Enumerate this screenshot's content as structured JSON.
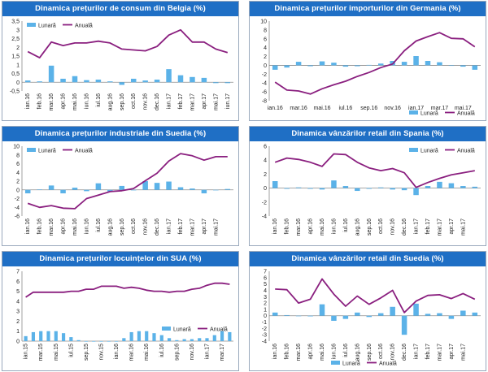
{
  "legend_labels": {
    "monthly": "Lunară",
    "annual": "Anuală"
  },
  "colors": {
    "title_bg": "#1f6fc5",
    "bar": "#5bb2e8",
    "line": "#8a1f7f"
  },
  "chart_data": [
    {
      "type": "bar+line",
      "title": "Dinamica prețurilor de consum din Belgia (%)",
      "legend_position": "top-left",
      "ylim": [
        -0.5,
        3.5
      ],
      "yticks": [
        -0.5,
        0,
        0.5,
        1,
        1.5,
        2,
        2.5,
        3,
        3.5
      ],
      "ytick_labels": [
        "-0,5",
        "0",
        "0,5",
        "1",
        "1,5",
        "2",
        "2,5",
        "3",
        "3,5"
      ],
      "categories": [
        "ian.16",
        "feb.16",
        "mar.16",
        "apr.16",
        "mai.16",
        "iun.16",
        "iul.16",
        "aug.16",
        "sep.16",
        "oct.16",
        "nov.16",
        "dec.16",
        "ian.17",
        "feb.17",
        "mar.17",
        "apr.17",
        "mai.17",
        "iun.17"
      ],
      "xtick_labels": [
        "ian.16",
        "feb.16",
        "mar.16",
        "apr.16",
        "mai.16",
        "iun.16",
        "iul.16",
        "aug.16",
        "sep.16",
        "oct.16",
        "nov.16",
        "dec.16",
        "ian.17",
        "feb.17",
        "mar.17",
        "apr.17",
        "mai.17",
        "iun.17"
      ],
      "xtick_rotated": true,
      "series": [
        {
          "name": "Lunară",
          "kind": "bar",
          "values": [
            0.1,
            0.05,
            0.95,
            0.2,
            0.35,
            0.12,
            0.15,
            0.05,
            -0.15,
            0.2,
            0.1,
            0.15,
            0.75,
            0.4,
            0.3,
            0.25,
            -0.05,
            -0.05
          ]
        },
        {
          "name": "Anuală",
          "kind": "line",
          "values": [
            1.75,
            1.4,
            2.3,
            2.1,
            2.25,
            2.25,
            2.35,
            2.25,
            1.9,
            1.85,
            1.8,
            2.05,
            2.7,
            3.0,
            2.3,
            2.3,
            1.9,
            1.7
          ]
        }
      ]
    },
    {
      "type": "bar+line",
      "title": "Dinamica prețurilor importurilor din Germania (%)",
      "legend_position": "bottom-right",
      "ylim": [
        -8,
        10
      ],
      "yticks": [
        -8,
        -6,
        -4,
        -2,
        0,
        2,
        4,
        6,
        8,
        10
      ],
      "ytick_labels": [
        "-8",
        "-6",
        "-4",
        "-2",
        "0",
        "2",
        "4",
        "6",
        "8",
        "10"
      ],
      "categories": [
        "ian.16",
        "feb.16",
        "mar.16",
        "apr.16",
        "mai.16",
        "iun.16",
        "iul.16",
        "aug.16",
        "sep.16",
        "oct.16",
        "nov.16",
        "dec.16",
        "ian.17",
        "feb.17",
        "mar.17",
        "apr.17",
        "mai.17",
        "iun.17"
      ],
      "xtick_labels": [
        "ian.16",
        "",
        "mar.16",
        "",
        "mai.16",
        "",
        "iul.16",
        "",
        "sep.16",
        "",
        "nov.16",
        "",
        "ian.17",
        "",
        "mar.17",
        "",
        "mai.17",
        ""
      ],
      "xtick_rotated": false,
      "series": [
        {
          "name": "Lunară",
          "kind": "bar",
          "values": [
            -1.0,
            -0.5,
            0.8,
            -0.2,
            0.9,
            0.6,
            -0.3,
            -0.2,
            0.1,
            0.4,
            1.0,
            0.8,
            2.1,
            1.0,
            0.7,
            -0.1,
            -0.3,
            -1.0
          ]
        },
        {
          "name": "Anuală",
          "kind": "line",
          "values": [
            -3.8,
            -5.6,
            -5.8,
            -6.5,
            -5.3,
            -4.4,
            -3.6,
            -2.5,
            -1.6,
            -0.5,
            0.3,
            3.3,
            5.5,
            6.5,
            7.4,
            6.1,
            6.0,
            4.2
          ]
        }
      ]
    },
    {
      "type": "bar+line",
      "title": "Dinamica prețurilor industriale din Suedia (%)",
      "legend_position": "top-left",
      "ylim": [
        -6,
        10
      ],
      "yticks": [
        -6,
        -4,
        -2,
        0,
        2,
        4,
        6,
        8,
        10
      ],
      "ytick_labels": [
        "-6",
        "-4",
        "-2",
        "0",
        "2",
        "4",
        "6",
        "8",
        "10"
      ],
      "categories": [
        "ian.16",
        "feb.16",
        "mar.16",
        "apr.16",
        "mai.16",
        "iun.16",
        "iul.16",
        "aug.16",
        "sep.16",
        "oct.16",
        "nov.16",
        "dec.16",
        "ian.17",
        "feb.17",
        "mar.17",
        "apr.17",
        "mai.17",
        "iun.17"
      ],
      "xtick_labels": [
        "ian.16",
        "feb.16",
        "mar.16",
        "apr.16",
        "mai.16",
        "iun.16",
        "iul.16",
        "aug.16",
        "sep.16",
        "oct.16",
        "nov.16",
        "dec.16",
        "ian.17",
        "feb.17",
        "mar.17",
        "apr.17",
        "mai.17",
        ""
      ],
      "xtick_rotated": true,
      "series": [
        {
          "name": "Lunară",
          "kind": "bar",
          "values": [
            -0.8,
            0.1,
            1.0,
            -0.8,
            0.5,
            -0.3,
            1.5,
            -0.4,
            0.9,
            0.0,
            2.0,
            1.6,
            1.9,
            0.6,
            0.3,
            -0.8,
            0.0,
            0.2
          ]
        },
        {
          "name": "Anuală",
          "kind": "line",
          "values": [
            -3.1,
            -4.0,
            -3.6,
            -4.2,
            -4.3,
            -2.0,
            -1.2,
            -0.4,
            -0.2,
            0.3,
            2.1,
            3.8,
            6.6,
            8.3,
            7.8,
            6.8,
            7.6,
            7.6
          ]
        }
      ]
    },
    {
      "type": "bar+line",
      "title": "Dinamica vânzărilor retail din Spania (%)",
      "legend_position": "top-right",
      "ylim": [
        -4,
        6
      ],
      "yticks": [
        -4,
        -2,
        0,
        2,
        4,
        6
      ],
      "ytick_labels": [
        "-4",
        "-2",
        "0",
        "2",
        "4",
        "6"
      ],
      "categories": [
        "ian.16",
        "feb.16",
        "mar.16",
        "apr.16",
        "mai.16",
        "iun.16",
        "iul.16",
        "aug.16",
        "sep.16",
        "oct.16",
        "nov.16",
        "dec.16",
        "ian.17",
        "feb.17",
        "mar.17",
        "apr.17",
        "mai.17",
        "iun.17"
      ],
      "xtick_labels": [
        "ian.16",
        "feb.16",
        "mar.16",
        "apr.16",
        "mai.16",
        "iun.16",
        "iul.16",
        "aug.16",
        "sep.16",
        "oct.16",
        "nov.16",
        "dec.16",
        "ian.17",
        "feb.17",
        "mar.17",
        "apr.17",
        "mai.17",
        ""
      ],
      "xtick_rotated": true,
      "series": [
        {
          "name": "Lunară",
          "kind": "bar",
          "values": [
            1.0,
            -0.1,
            0.1,
            -0.1,
            -0.2,
            1.1,
            0.3,
            -0.4,
            -0.1,
            0.1,
            -0.2,
            -0.3,
            -1.0,
            0.3,
            0.9,
            0.7,
            0.3,
            0.2
          ]
        },
        {
          "name": "Anuală",
          "kind": "line",
          "values": [
            3.7,
            4.3,
            4.1,
            3.7,
            3.1,
            4.9,
            4.8,
            3.7,
            2.9,
            2.5,
            2.8,
            2.2,
            0.1,
            0.8,
            1.4,
            1.9,
            2.2,
            2.5
          ]
        }
      ]
    },
    {
      "type": "bar+line",
      "title": "Dinamica prețurilor locuințelor din SUA (%)",
      "legend_position": "bottom-right",
      "ylim": [
        0,
        7
      ],
      "yticks": [
        0,
        1,
        2,
        3,
        4,
        5,
        6,
        7
      ],
      "ytick_labels": [
        "0",
        "1",
        "2",
        "3",
        "4",
        "5",
        "6",
        "7"
      ],
      "categories": [
        "ian.15",
        "feb.15",
        "mar.15",
        "apr.15",
        "mai.15",
        "iun.15",
        "iul.15",
        "aug.15",
        "sep.15",
        "oct.15",
        "nov.15",
        "dec.15",
        "ian.16",
        "feb.16",
        "mar.16",
        "apr.16",
        "mai.16",
        "iun.16",
        "iul.16",
        "aug.16",
        "sep.16",
        "oct.16",
        "nov.16",
        "dec.16",
        "ian.17",
        "feb.17",
        "mar.17",
        "apr.17"
      ],
      "xtick_labels": [
        "ian.15",
        "",
        "mar.15",
        "",
        "mai.15",
        "",
        "iul.15",
        "",
        "sep.15",
        "",
        "nov.15",
        "",
        "ian.16",
        "",
        "mar.16",
        "",
        "mai.16",
        "",
        "iul.16",
        "",
        "sep.16",
        "",
        "nov.16",
        "",
        "ian.17",
        "",
        "mar.17",
        ""
      ],
      "xtick_rotated": true,
      "series": [
        {
          "name": "Lunară",
          "kind": "bar",
          "values": [
            0.5,
            0.9,
            1.0,
            1.0,
            1.0,
            0.8,
            0.4,
            0.1,
            0.0,
            0.0,
            0.0,
            0.0,
            0.0,
            0.3,
            0.9,
            1.0,
            1.0,
            0.8,
            0.6,
            0.3,
            0.1,
            0.2,
            0.2,
            0.3,
            0.3,
            0.6,
            1.0,
            0.9
          ]
        },
        {
          "name": "Anuală",
          "kind": "line",
          "values": [
            4.4,
            4.9,
            4.9,
            4.9,
            4.9,
            4.9,
            5.0,
            5.0,
            5.2,
            5.2,
            5.5,
            5.5,
            5.5,
            5.3,
            5.4,
            5.3,
            5.1,
            5.0,
            5.0,
            4.9,
            5.0,
            5.0,
            5.2,
            5.3,
            5.6,
            5.8,
            5.8,
            5.7
          ]
        }
      ]
    },
    {
      "type": "bar+line",
      "title": "Dinamica vânzărilor retail din Suedia (%)",
      "legend_position": "bottom-center",
      "ylim": [
        -4,
        7
      ],
      "yticks": [
        -4,
        -3,
        -2,
        -1,
        0,
        1,
        2,
        3,
        4,
        5,
        6,
        7
      ],
      "ytick_labels": [
        "-4",
        "-3",
        "-2",
        "-1",
        "0",
        "1",
        "2",
        "3",
        "4",
        "5",
        "6",
        "7"
      ],
      "categories": [
        "ian.16",
        "feb.16",
        "mar.16",
        "apr.16",
        "mai.16",
        "iun.16",
        "iul.16",
        "aug.16",
        "sep.16",
        "oct.16",
        "nov.16",
        "dec.16",
        "ian.17",
        "feb.17",
        "mar.17",
        "apr.17",
        "mai.17",
        "iun.17"
      ],
      "xtick_labels": [
        "ian.16",
        "feb.16",
        "mar.16",
        "apr.16",
        "mai.16",
        "iun.16",
        "iul.16",
        "aug.16",
        "sep.16",
        "oct.16",
        "nov.16",
        "dec.16",
        "ian.17",
        "feb.17",
        "mar.17",
        "apr.17",
        "mai.17",
        ""
      ],
      "xtick_rotated": true,
      "series": [
        {
          "name": "Lunară",
          "kind": "bar",
          "values": [
            0.5,
            0.1,
            0.0,
            -0.1,
            1.8,
            -0.8,
            -0.5,
            0.5,
            -0.2,
            0.4,
            1.4,
            -3.0,
            1.9,
            0.3,
            0.4,
            -0.5,
            0.8,
            0.5
          ]
        },
        {
          "name": "Anuală",
          "kind": "line",
          "values": [
            4.2,
            4.1,
            2.0,
            2.6,
            5.8,
            3.4,
            1.5,
            3.1,
            1.8,
            2.8,
            4.0,
            0.5,
            2.3,
            3.2,
            3.3,
            2.7,
            3.5,
            2.6
          ]
        }
      ]
    }
  ]
}
